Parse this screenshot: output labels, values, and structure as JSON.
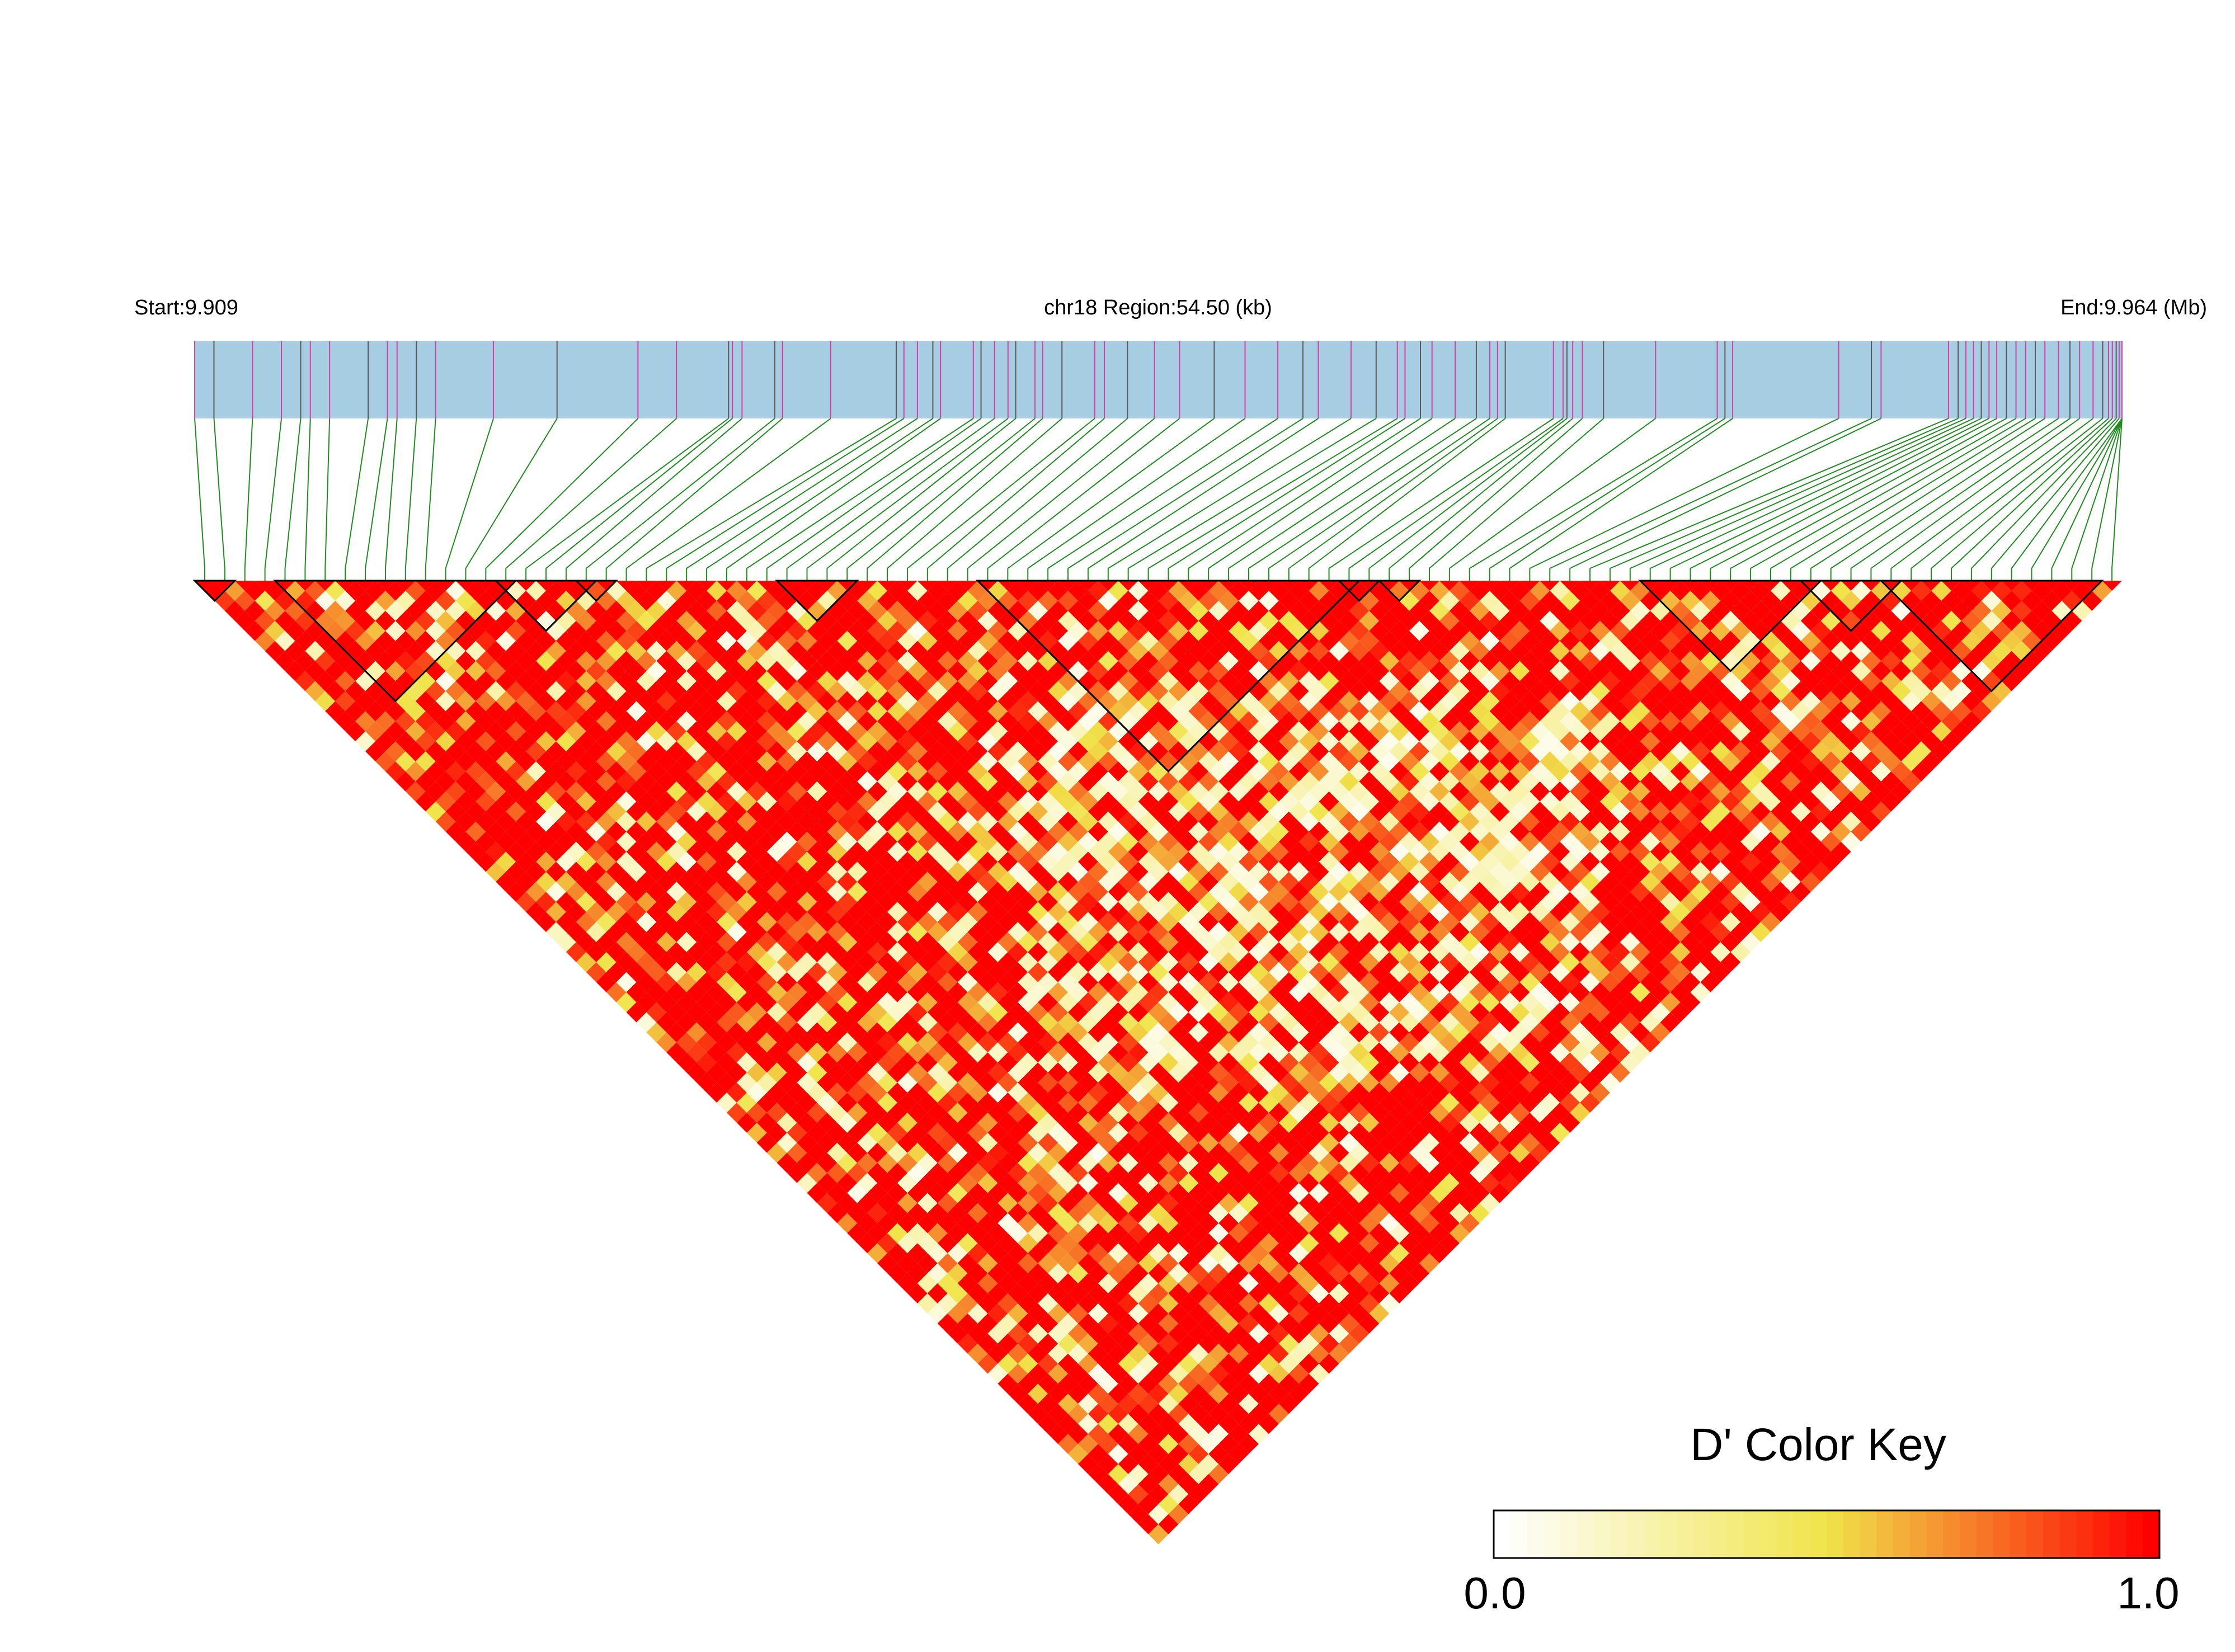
{
  "colors": {
    "track_fill": "#a6cde2",
    "snp_tick_a": "#d63fa8",
    "snp_tick_b": "#5a5a5a",
    "connector": "#1f8c1f",
    "block_outline": "#000000",
    "ld_low": "#ffffff",
    "ld_mid": "#f0e44a",
    "ld_high": "#ff0000"
  },
  "chart_data": {
    "type": "heatmap",
    "chart_kind": "LD heatmap (pairwise D')",
    "start_label": "Start:9.909",
    "region_label": "chr18 Region:54.50 (kb)",
    "end_label": "End:9.964 (Mb)",
    "chromosome": "chr18",
    "region_start_mb": 9.909,
    "region_end_mb": 9.964,
    "region_length_kb": 54.5,
    "snp_count": 96,
    "snp_track_positions": [
      0,
      1.0,
      3.0,
      4.5,
      5.5,
      6.0,
      7.0,
      9.0,
      10.0,
      10.5,
      11.5,
      12.5,
      15.5,
      18.8,
      23.0,
      25.0,
      27.7,
      27.9,
      28.4,
      30.1,
      30.5,
      33.0,
      36.4,
      36.8,
      37.5,
      38.3,
      38.7,
      40.4,
      40.8,
      41.5,
      42.2,
      42.6,
      43.6,
      44.0,
      45.0,
      46.7,
      47.2,
      48.4,
      49.8,
      51.1,
      52.9,
      54.5,
      56.2,
      57.5,
      58.3,
      60.0,
      61.3,
      62.4,
      62.8,
      63.6,
      64.2,
      65.4,
      66.5,
      67.2,
      67.6,
      68.0,
      70.5,
      71.0,
      71.2,
      71.5,
      72.0,
      73.1,
      75.8,
      79.0,
      79.4,
      79.8,
      85.3,
      87.0,
      87.5,
      91.0,
      91.5,
      91.9,
      92.3,
      92.7,
      93.1,
      93.5,
      94.0,
      94.5,
      95.0,
      95.5,
      96.0,
      96.7,
      97.3,
      97.8,
      98.5,
      99.0,
      99.3,
      99.5,
      99.7,
      99.85,
      100,
      100,
      100,
      100,
      100,
      100
    ],
    "blocks": [
      {
        "first_snp": 0,
        "last_snp": 1
      },
      {
        "first_snp": 4,
        "last_snp": 15
      },
      {
        "first_snp": 15,
        "last_snp": 19
      },
      {
        "first_snp": 19,
        "last_snp": 20
      },
      {
        "first_snp": 29,
        "last_snp": 32
      },
      {
        "first_snp": 39,
        "last_snp": 57
      },
      {
        "first_snp": 57,
        "last_snp": 58
      },
      {
        "first_snp": 59,
        "last_snp": 60
      },
      {
        "first_snp": 72,
        "last_snp": 80
      },
      {
        "first_snp": 80,
        "last_snp": 84
      },
      {
        "first_snp": 84,
        "last_snp": 94
      }
    ],
    "values_generation": "pseudo-random D' per SNP pair; mostly ~1.0 (red) with scattered lower values",
    "legend": {
      "title": "D' Color Key",
      "min_label": "0.0",
      "max_label": "1.0",
      "placement": "bottom-right",
      "steps": 40
    }
  }
}
